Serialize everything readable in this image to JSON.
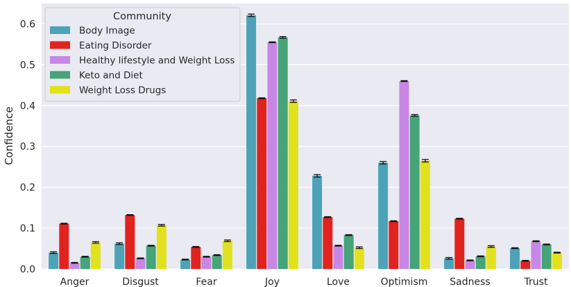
{
  "chart_data": {
    "type": "bar",
    "title": "",
    "xlabel": "",
    "ylabel": "Confidence",
    "ylim": [
      0,
      0.65
    ],
    "yticks": [
      "0.0",
      "0.1",
      "0.2",
      "0.3",
      "0.4",
      "0.5",
      "0.6"
    ],
    "grid": true,
    "legend_title": "Community",
    "legend_position": "top-left",
    "categories": [
      "Anger",
      "Disgust",
      "Fear",
      "Joy",
      "Love",
      "Optimism",
      "Sadness",
      "Trust"
    ],
    "series": [
      {
        "name": "Body Image",
        "color": "#4ca3b8",
        "values": [
          0.04,
          0.062,
          0.023,
          0.621,
          0.228,
          0.26,
          0.026,
          0.051
        ],
        "errors": [
          0.002,
          0.002,
          0.001,
          0.003,
          0.003,
          0.003,
          0.002,
          0.001
        ]
      },
      {
        "name": "Eating Disorder",
        "color": "#e0231f",
        "values": [
          0.111,
          0.132,
          0.054,
          0.418,
          0.127,
          0.117,
          0.123,
          0.02
        ],
        "errors": [
          0.001,
          0.001,
          0.001,
          0.001,
          0.001,
          0.001,
          0.001,
          0.001
        ]
      },
      {
        "name": "Healthy lifestyle and Weight Loss",
        "color": "#c887e6",
        "values": [
          0.015,
          0.026,
          0.03,
          0.555,
          0.057,
          0.46,
          0.021,
          0.068
        ],
        "errors": [
          0.001,
          0.001,
          0.001,
          0.001,
          0.001,
          0.001,
          0.001,
          0.001
        ]
      },
      {
        "name": "Keto and Diet",
        "color": "#45a478",
        "values": [
          0.03,
          0.057,
          0.034,
          0.567,
          0.083,
          0.376,
          0.031,
          0.06
        ],
        "errors": [
          0.001,
          0.001,
          0.001,
          0.002,
          0.001,
          0.002,
          0.001,
          0.001
        ]
      },
      {
        "name": "Weight Loss Drugs",
        "color": "#e2e21c",
        "values": [
          0.065,
          0.107,
          0.069,
          0.411,
          0.052,
          0.265,
          0.055,
          0.04
        ],
        "errors": [
          0.002,
          0.002,
          0.002,
          0.003,
          0.002,
          0.003,
          0.002,
          0.001
        ]
      }
    ]
  }
}
